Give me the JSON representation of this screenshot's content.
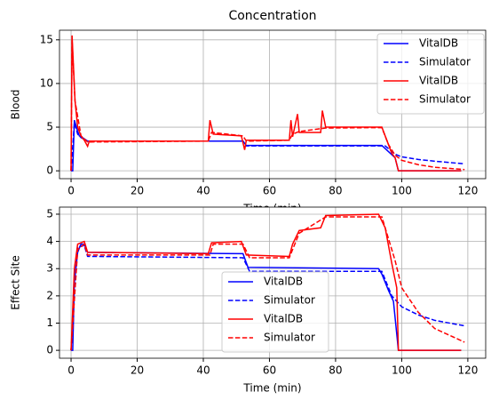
{
  "chart_data": [
    {
      "type": "line",
      "title": "Concentration",
      "x_label": "Time (min)",
      "y_label": "Blood",
      "xlim": [
        -3.5,
        125.4
      ],
      "ylim": [
        -0.9,
        16.1
      ],
      "xticks": [
        0,
        20,
        40,
        60,
        80,
        100,
        120
      ],
      "yticks": [
        0,
        5,
        10,
        15
      ],
      "grid": true,
      "legend": "upper right",
      "series": [
        {
          "name": "VitalDB",
          "color": "#0000ff",
          "linestyle": "solid",
          "x": [
            0,
            0.5,
            1,
            2,
            2.5,
            3.5,
            5,
            52,
            53,
            94,
            96,
            98,
            99,
            118
          ],
          "values": [
            0,
            0,
            5.8,
            4.5,
            4.0,
            3.8,
            3.4,
            3.4,
            2.9,
            2.9,
            2.2,
            1.5,
            0,
            0
          ]
        },
        {
          "name": "Simulator",
          "color": "#0000ff",
          "linestyle": "dashed",
          "x": [
            0,
            1,
            2,
            3,
            5,
            52,
            53,
            95,
            98,
            100,
            105,
            110,
            119
          ],
          "values": [
            0,
            5.5,
            4.2,
            3.8,
            3.4,
            3.4,
            2.85,
            2.85,
            1.9,
            1.6,
            1.3,
            1.1,
            0.8
          ]
        },
        {
          "name": "VitalDB",
          "color": "#ff0000",
          "linestyle": "solid",
          "x": [
            0,
            0.3,
            1.2,
            2,
            3,
            4,
            5,
            5.5,
            41.5,
            42,
            43,
            51.5,
            52.5,
            53,
            66,
            66.5,
            67,
            68.5,
            69,
            75.5,
            76,
            77,
            94,
            96,
            97,
            98,
            99,
            118
          ],
          "values": [
            0,
            15.5,
            8,
            5,
            4,
            3.5,
            2.8,
            3.4,
            3.4,
            5.8,
            4.2,
            4.0,
            2.4,
            3.5,
            3.5,
            5.8,
            3.9,
            6.5,
            4.4,
            4.4,
            6.9,
            5.0,
            5.0,
            3.0,
            2.0,
            1.5,
            0,
            0
          ]
        },
        {
          "name": "Simulator",
          "color": "#ff0000",
          "linestyle": "dashed",
          "x": [
            0,
            0.3,
            1.2,
            3,
            5,
            41.5,
            42.5,
            52,
            53,
            66,
            67,
            69,
            77,
            94,
            96,
            98,
            100,
            105,
            110,
            119
          ],
          "values": [
            0,
            15,
            8,
            4,
            3.3,
            3.4,
            4.4,
            4.0,
            3.4,
            3.5,
            4.2,
            4.5,
            4.9,
            4.95,
            3.0,
            1.8,
            1.2,
            0.7,
            0.4,
            0.15
          ]
        }
      ]
    },
    {
      "type": "line",
      "x_label": "Time (min)",
      "y_label": "Effect Site",
      "xlim": [
        -3.5,
        125.4
      ],
      "ylim": [
        -0.29,
        5.26
      ],
      "xticks": [
        0,
        20,
        40,
        60,
        80,
        100,
        120
      ],
      "yticks": [
        0,
        1,
        2,
        3,
        4,
        5
      ],
      "grid": true,
      "legend": "center",
      "series": [
        {
          "name": "VitalDB",
          "color": "#0000ff",
          "linestyle": "solid",
          "x": [
            0,
            0.5,
            1,
            2,
            3,
            4,
            5,
            52,
            53.5,
            93,
            94,
            96,
            97.5,
            99,
            118
          ],
          "values": [
            0,
            0,
            2.5,
            3.6,
            3.9,
            3.9,
            3.6,
            3.55,
            3.05,
            3.0,
            2.8,
            2.2,
            1.8,
            0,
            0
          ]
        },
        {
          "name": "Simulator",
          "color": "#0000ff",
          "linestyle": "dashed",
          "x": [
            0,
            2,
            4,
            5,
            52,
            54,
            94,
            97,
            100,
            105,
            110,
            119
          ],
          "values": [
            0,
            3.8,
            3.85,
            3.45,
            3.4,
            2.9,
            2.9,
            2.0,
            1.6,
            1.3,
            1.1,
            0.9
          ]
        },
        {
          "name": "VitalDB",
          "color": "#ff0000",
          "linestyle": "solid",
          "x": [
            0,
            1,
            2,
            4,
            5,
            41.5,
            42.5,
            51.5,
            53,
            66,
            67,
            69,
            75.5,
            77,
            93,
            95,
            97,
            98.5,
            99,
            118
          ],
          "values": [
            0,
            3.0,
            3.9,
            4.0,
            3.6,
            3.55,
            3.95,
            4.0,
            3.5,
            3.45,
            3.9,
            4.4,
            4.5,
            4.95,
            5.0,
            4.5,
            3.2,
            2.3,
            0,
            0
          ]
        },
        {
          "name": "Simulator",
          "color": "#ff0000",
          "linestyle": "dashed",
          "x": [
            0,
            2,
            4,
            5,
            42,
            43,
            52,
            54,
            66,
            69,
            77,
            94,
            98,
            100,
            105,
            110,
            119
          ],
          "values": [
            0,
            3.7,
            3.9,
            3.5,
            3.5,
            3.9,
            3.9,
            3.4,
            3.4,
            4.3,
            4.9,
            4.9,
            3.3,
            2.3,
            1.4,
            0.8,
            0.3
          ]
        }
      ]
    }
  ]
}
